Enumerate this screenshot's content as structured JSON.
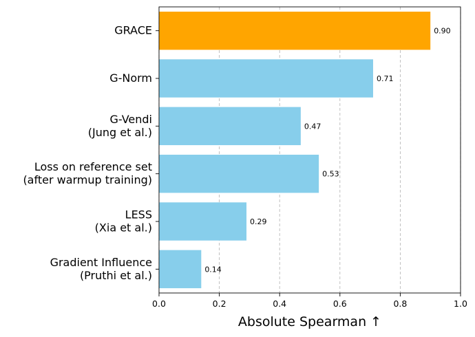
{
  "chart_data": {
    "type": "bar",
    "orientation": "horizontal",
    "title": "",
    "xlabel": "Absolute Spearman ↑",
    "ylabel": "",
    "xlim": [
      0.0,
      1.0
    ],
    "xticks": [
      0.0,
      0.2,
      0.4,
      0.6,
      0.8,
      1.0
    ],
    "xtick_labels": [
      "0.0",
      "0.2",
      "0.4",
      "0.6",
      "0.8",
      "1.0"
    ],
    "grid": "x-dashed",
    "categories": [
      [
        "GRACE"
      ],
      [
        "G-Norm"
      ],
      [
        "G-Vendi",
        "(Jung et al.)"
      ],
      [
        "Loss on reference set",
        "(after warmup training)"
      ],
      [
        "LESS",
        "(Xia et al.)"
      ],
      [
        "Gradient Influence",
        "(Pruthi et al.)"
      ]
    ],
    "values": [
      0.9,
      0.71,
      0.47,
      0.53,
      0.29,
      0.14
    ],
    "value_labels": [
      "0.90",
      "0.71",
      "0.47",
      "0.53",
      "0.29",
      "0.14"
    ],
    "colors": [
      "#FFA500",
      "#87CEEB",
      "#87CEEB",
      "#87CEEB",
      "#87CEEB",
      "#87CEEB"
    ]
  }
}
